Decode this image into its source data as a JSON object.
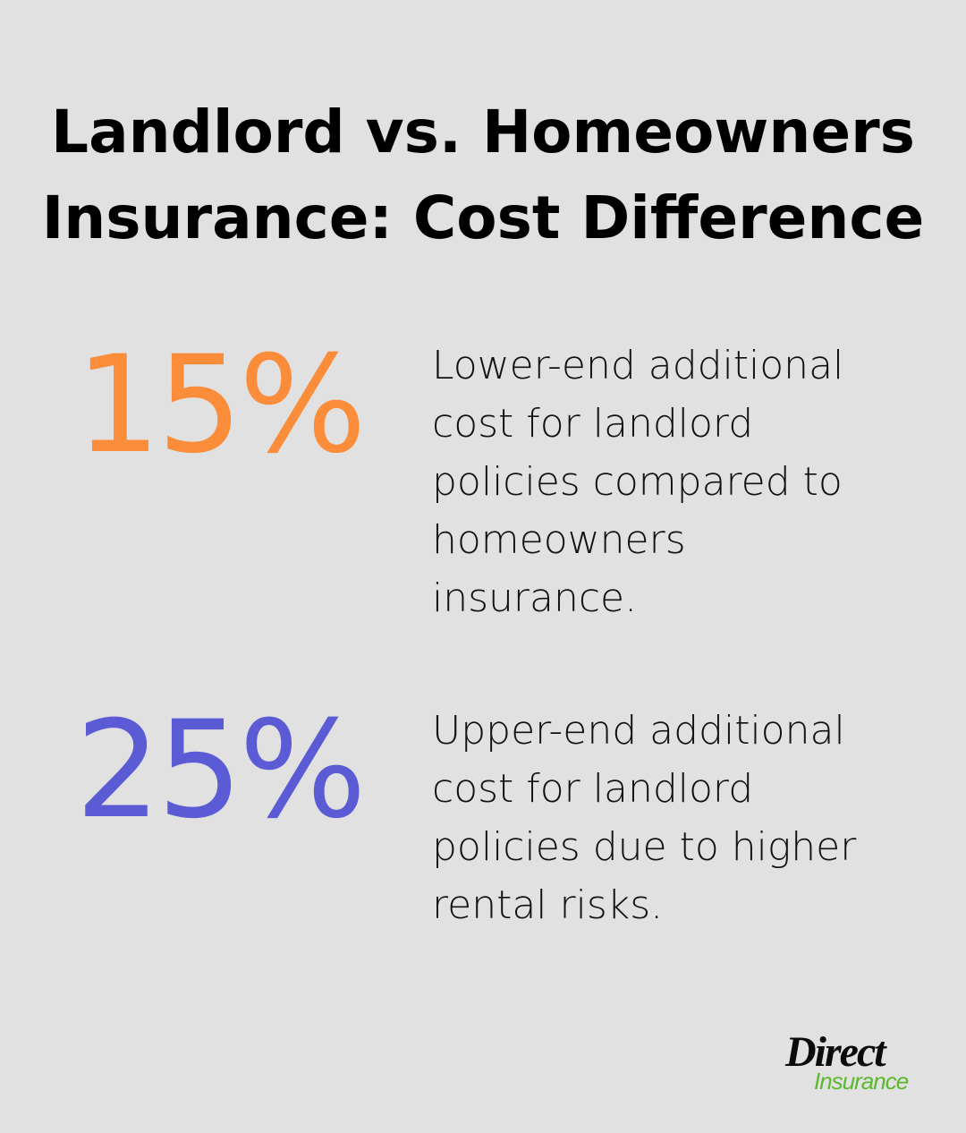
{
  "title": {
    "line1": "Landlord vs. Homeowners",
    "line2": "Insurance: Cost Difference"
  },
  "stats": [
    {
      "value": "15%",
      "color": "#fb8c3a",
      "description": "Lower-end additional cost for landlord policies compared to homeowners insurance."
    },
    {
      "value": "25%",
      "color": "#5b5bd6",
      "description": "Upper-end additional cost for landlord policies due to higher rental risks."
    }
  ],
  "logo": {
    "line1": "Direct",
    "line2": "Insurance",
    "colors": {
      "primary": "#0b0b0b",
      "accent": "#5cb82c"
    }
  }
}
